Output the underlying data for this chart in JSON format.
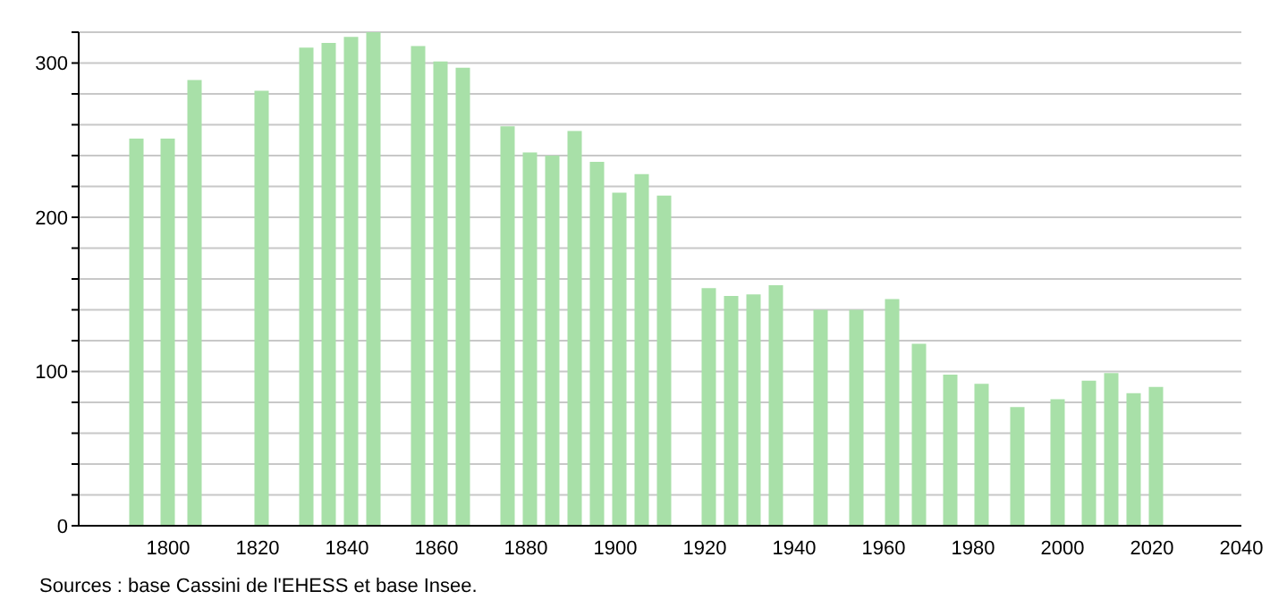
{
  "chart_data": {
    "type": "bar",
    "x": [
      1793,
      1800,
      1806,
      1821,
      1831,
      1836,
      1841,
      1846,
      1856,
      1861,
      1866,
      1876,
      1881,
      1886,
      1891,
      1896,
      1901,
      1906,
      1911,
      1921,
      1926,
      1931,
      1936,
      1946,
      1954,
      1962,
      1968,
      1975,
      1982,
      1990,
      1999,
      2006,
      2011,
      2016,
      2021
    ],
    "values": [
      251,
      251,
      289,
      282,
      310,
      313,
      317,
      320,
      311,
      301,
      297,
      259,
      242,
      240,
      256,
      236,
      216,
      228,
      214,
      154,
      149,
      150,
      156,
      140,
      140,
      147,
      118,
      98,
      92,
      77,
      82,
      94,
      99,
      86,
      90
    ],
    "color": "#a8e0a8",
    "xlim": [
      1780,
      2040
    ],
    "xticks": [
      1800,
      1820,
      1840,
      1860,
      1880,
      1900,
      1920,
      1940,
      1960,
      1980,
      2000,
      2020,
      2040
    ],
    "ylim": [
      0,
      320
    ],
    "yticks": [
      0,
      {
        "value": 20,
        "label": null
      },
      {
        "value": 40,
        "label": null
      },
      {
        "value": 60,
        "label": null
      },
      {
        "value": 80,
        "label": null
      },
      100,
      {
        "value": 120,
        "label": null
      },
      {
        "value": 140,
        "label": null
      },
      {
        "value": 160,
        "label": null
      },
      {
        "value": 180,
        "label": null
      },
      200,
      {
        "value": 220,
        "label": null
      },
      {
        "value": 240,
        "label": null
      },
      {
        "value": 260,
        "label": null
      },
      {
        "value": 280,
        "label": null
      },
      300,
      {
        "value": 320,
        "label": null
      }
    ],
    "grid": "y",
    "annotations": [
      "Sources : base Cassini de l'EHESS et base Insee."
    ]
  }
}
